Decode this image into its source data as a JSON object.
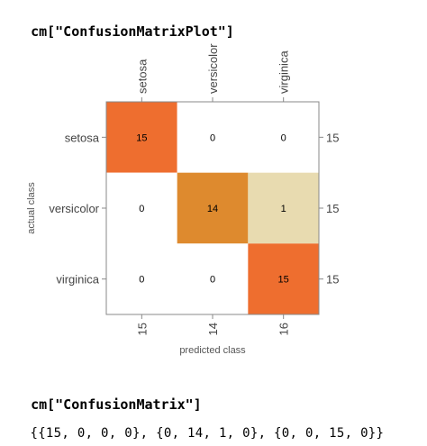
{
  "input1": {
    "code": "cm[\"ConfusionMatrixPlot\"]"
  },
  "input2": {
    "code": "cm[\"ConfusionMatrix\"]"
  },
  "output2": {
    "text": "{{15, 0, 0, 0}, {0, 14, 1, 0}, {0, 0, 15, 0}}"
  },
  "colors": {
    "high": "#ee6e2f",
    "mid": "#de8a2e",
    "low": "#e8dbb0",
    "zero": "#ffffff",
    "frame": "#888888"
  },
  "chart_data": {
    "type": "heatmap",
    "xlabel": "predicted class",
    "ylabel": "actual class",
    "columns": [
      "setosa",
      "versicolor",
      "virginica"
    ],
    "rows": [
      "setosa",
      "versicolor",
      "virginica"
    ],
    "values": [
      [
        15,
        0,
        0
      ],
      [
        0,
        14,
        1
      ],
      [
        0,
        0,
        15
      ]
    ],
    "row_totals": [
      15,
      15,
      15
    ],
    "column_totals": [
      15,
      14,
      16
    ]
  }
}
